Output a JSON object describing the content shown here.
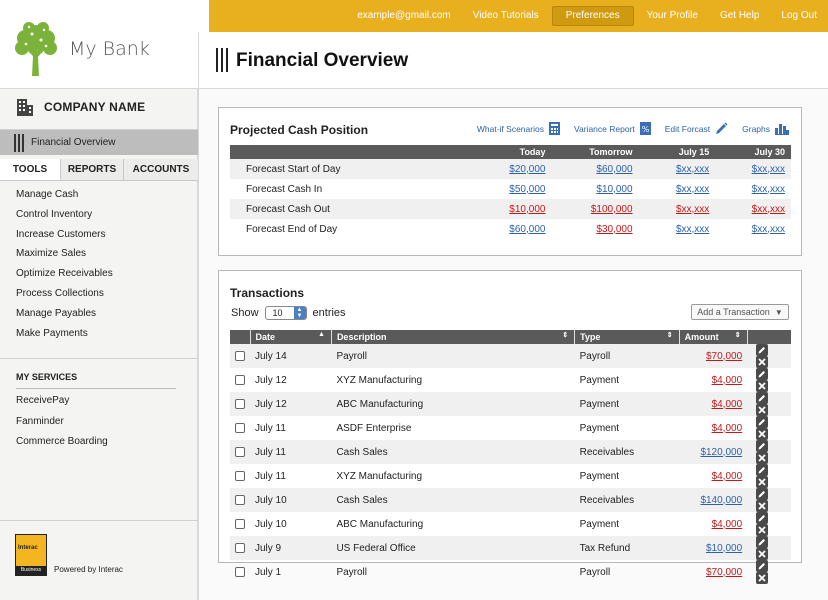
{
  "topnav": {
    "items": [
      {
        "label": "example@gmail.com",
        "active": false
      },
      {
        "label": "Video Tutorials",
        "active": false
      },
      {
        "label": "Preferences",
        "active": true
      },
      {
        "label": "Your Profile",
        "active": false
      },
      {
        "label": "Get Help",
        "active": false
      },
      {
        "label": "Log Out",
        "active": false
      }
    ]
  },
  "sidebar": {
    "logo_name": "My Bank",
    "company_name": "COMPANY NAME",
    "selected_item": "Financial Overview",
    "tabs": [
      "TOOLS",
      "REPORTS",
      "ACCOUNTS"
    ],
    "active_tab": "TOOLS",
    "tools": [
      "Manage Cash",
      "Control Inventory",
      "Increase Customers",
      "Maximize Sales",
      "Optimize Receivables",
      "Process Collections",
      "Manage Payables",
      "Make Payments"
    ],
    "services_heading": "MY SERVICES",
    "services": [
      "ReceivePay",
      "Fanminder",
      "Commerce Boarding"
    ],
    "interac_word": "Interac",
    "interac_badge": "Business",
    "powered_by": "Powered by Interac"
  },
  "main": {
    "title": "Financial Overview",
    "cash": {
      "title": "Projected Cash Position",
      "actions": [
        {
          "label": "What-if Scenarios",
          "icon": "calculator-icon"
        },
        {
          "label": "Variance Report",
          "icon": "report-icon"
        },
        {
          "label": "Edit Forcast",
          "icon": "pencil-icon"
        },
        {
          "label": "Graphs",
          "icon": "bar-chart-icon"
        }
      ],
      "columns": [
        "",
        "Today",
        "Tomorrow",
        "July 15",
        "July 30"
      ],
      "rows": [
        {
          "label": "Forecast Start of Day",
          "cells": [
            {
              "v": "$20,000",
              "c": "blue"
            },
            {
              "v": "$60,000",
              "c": "blue"
            },
            {
              "v": "$xx,xxx",
              "c": "blue"
            },
            {
              "v": "$xx,xxx",
              "c": "blue"
            }
          ]
        },
        {
          "label": "Forecast Cash In",
          "cells": [
            {
              "v": "$50,000",
              "c": "blue"
            },
            {
              "v": "$10,000",
              "c": "blue"
            },
            {
              "v": "$xx,xxx",
              "c": "blue"
            },
            {
              "v": "$xx,xxx",
              "c": "blue"
            }
          ]
        },
        {
          "label": "Forecast Cash Out",
          "cells": [
            {
              "v": "$10,000",
              "c": "red"
            },
            {
              "v": "$100,000",
              "c": "red"
            },
            {
              "v": "$xx,xxx",
              "c": "red"
            },
            {
              "v": "$xx,xxx",
              "c": "red"
            }
          ]
        },
        {
          "label": "Forecast End of Day",
          "cells": [
            {
              "v": "$60,000",
              "c": "blue"
            },
            {
              "v": "$30,000",
              "c": "red"
            },
            {
              "v": "$xx,xxx",
              "c": "blue"
            },
            {
              "v": "$xx,xxx",
              "c": "blue"
            }
          ]
        }
      ]
    },
    "transactions": {
      "title": "Transactions",
      "show_label": "Show",
      "show_value": "10",
      "entries_label": "entries",
      "add_label": "Add a Transaction",
      "columns": [
        "",
        "Date",
        "Description",
        "Type",
        "Amount",
        ""
      ],
      "rows": [
        {
          "date": "July 14",
          "desc": "Payroll",
          "type": "Payroll",
          "amount": "$70,000",
          "c": "red"
        },
        {
          "date": "July 12",
          "desc": "XYZ Manufacturing",
          "type": "Payment",
          "amount": "$4,000",
          "c": "red"
        },
        {
          "date": "July 12",
          "desc": "ABC Manufacturing",
          "type": "Payment",
          "amount": "$4,000",
          "c": "red"
        },
        {
          "date": "July 11",
          "desc": "ASDF Enterprise",
          "type": "Payment",
          "amount": "$4,000",
          "c": "red"
        },
        {
          "date": "July 11",
          "desc": "Cash Sales",
          "type": "Receivables",
          "amount": "$120,000",
          "c": "blue"
        },
        {
          "date": "July 11",
          "desc": "XYZ Manufacturing",
          "type": "Payment",
          "amount": "$4,000",
          "c": "red"
        },
        {
          "date": "July 10",
          "desc": "Cash Sales",
          "type": "Receivables",
          "amount": "$140,000",
          "c": "blue"
        },
        {
          "date": "July 10",
          "desc": "ABC Manufacturing",
          "type": "Payment",
          "amount": "$4,000",
          "c": "red"
        },
        {
          "date": "July 9",
          "desc": "US Federal Office",
          "type": "Tax Refund",
          "amount": "$10,000",
          "c": "blue"
        },
        {
          "date": "July 1",
          "desc": "Payroll",
          "type": "Payroll",
          "amount": "$70,000",
          "c": "red"
        }
      ]
    }
  },
  "colors": {
    "accent": "#e8b01e",
    "header_row": "#5a5a5a",
    "link_blue": "#2e62a8",
    "link_red": "#c01a1a",
    "logo_green": "#7bb33a"
  }
}
